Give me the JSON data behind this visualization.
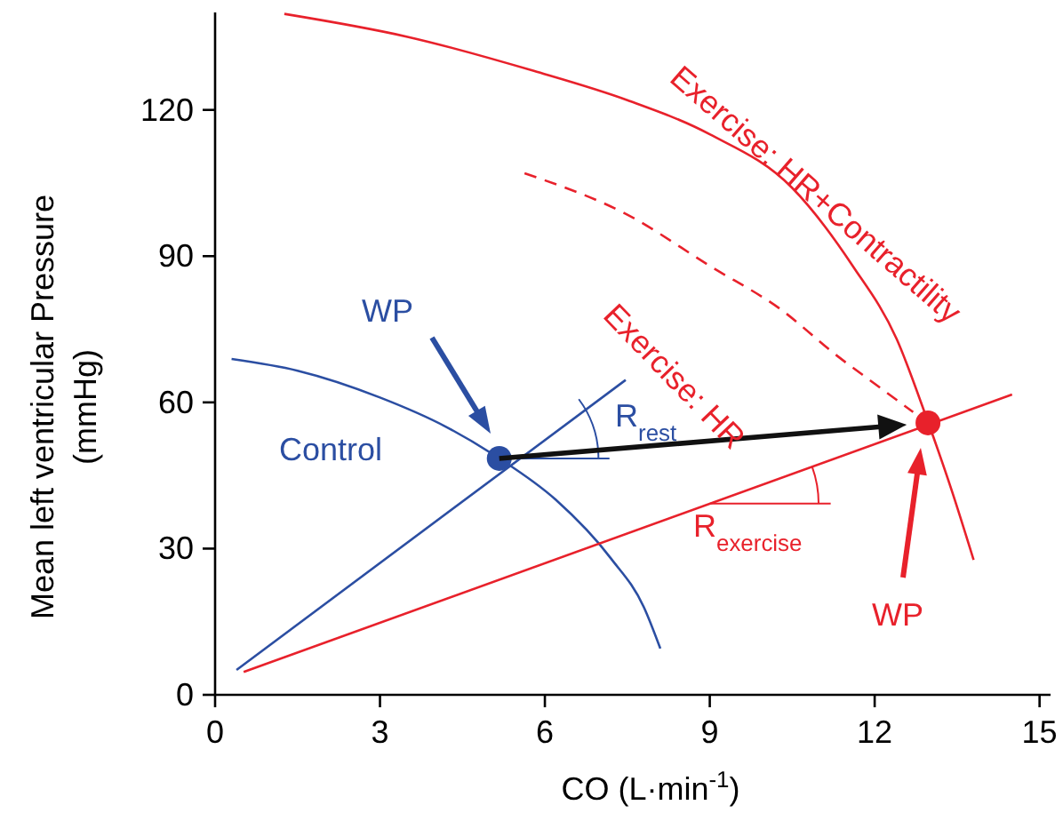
{
  "chart_data": {
    "type": "line",
    "xlabel": "CO (L·min$^{-1}$)",
    "ylabel": "Mean left ventricular Pressure (mmHg)",
    "xlim": [
      0,
      15.2
    ],
    "ylim": [
      0,
      140
    ],
    "xticks": [
      0,
      3,
      6,
      9,
      12,
      15
    ],
    "yticks": [
      0,
      30,
      60,
      90,
      120
    ],
    "grid": false,
    "series": [
      {
        "color": "#2b4ea2",
        "x": [
          0.3,
          1.5,
          3,
          4.2,
          5.17,
          6.2,
          7.2,
          7.8,
          8.1
        ],
        "values": [
          68.9,
          66.5,
          61,
          55,
          48.5,
          40,
          28,
          18,
          9.5
        ]
      },
      {
        "color": "#2b4ea2",
        "x": [
          0.39,
          7.47
        ],
        "values": [
          5.1,
          64.6
        ]
      },
      {
        "color": "#e8212b",
        "x": [
          0.52,
          14.5
        ],
        "values": [
          4.7,
          61.6
        ]
      },
      {
        "color": "#e8212b",
        "x": [
          1.26,
          3.5,
          5.8,
          7.5,
          9,
          10.5,
          11.6,
          12.4,
          12.97,
          13.4,
          13.8
        ],
        "values": [
          139.7,
          135,
          128,
          122,
          115,
          104,
          88,
          73,
          56,
          42,
          27.7
        ]
      },
      {
        "color": "#e8212b",
        "line_style": "dashed",
        "x": [
          5.63,
          7.5,
          9,
          10.3,
          11.3,
          12.1,
          12.7
        ],
        "values": [
          107,
          98.5,
          88,
          79,
          69.7,
          63,
          58
        ]
      },
      {
        "type": "scatter",
        "color": "#2b4ea2",
        "marker": "circle",
        "x": [
          5.17
        ],
        "values": [
          48.5
        ]
      },
      {
        "type": "scatter",
        "color": "#e8212b",
        "marker": "circle",
        "x": [
          12.97
        ],
        "values": [
          55.8
        ]
      }
    ],
    "annotations": [
      "WP",
      "Control",
      {
        "text": "R$_{rest}$",
        "x": 5.17,
        "y": 48.5
      },
      "R$_{exercise}$",
      "Exercise: HR+Contractility",
      "Exercise: HR",
      "WP"
    ]
  }
}
